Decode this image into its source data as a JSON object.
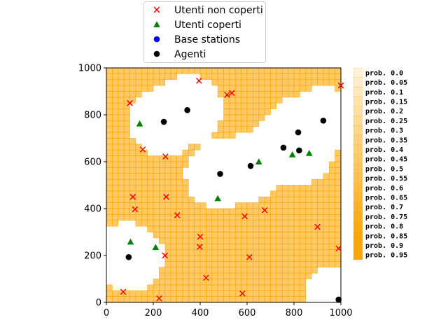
{
  "chart_data": {
    "type": "scatter",
    "xlim": [
      0,
      1000
    ],
    "ylim": [
      0,
      1000
    ],
    "xticks": [
      0,
      200,
      400,
      600,
      800,
      1000
    ],
    "yticks": [
      0,
      200,
      400,
      600,
      800,
      1000
    ],
    "background": {
      "type": "heatmap",
      "grid_step": 25,
      "color": "#ffa500",
      "uncovered_prob": 0.6,
      "coverage_radius": 150,
      "coverage_centers": [
        {
          "x": 245,
          "y": 770
        },
        {
          "x": 345,
          "y": 820
        },
        {
          "x": 485,
          "y": 548
        },
        {
          "x": 615,
          "y": 582
        },
        {
          "x": 755,
          "y": 660
        },
        {
          "x": 818,
          "y": 725
        },
        {
          "x": 822,
          "y": 648
        },
        {
          "x": 925,
          "y": 775
        },
        {
          "x": 95,
          "y": 193
        },
        {
          "x": 990,
          "y": 12
        }
      ]
    },
    "colorbar": {
      "levels": [
        "prob. 0.0",
        "prob. 0.05",
        "prob. 0.1",
        "prob. 0.15",
        "prob. 0.2",
        "prob. 0.25",
        "prob. 0.3",
        "prob. 0.35",
        "prob. 0.4",
        "prob. 0.45",
        "prob. 0.5",
        "prob. 0.55",
        "prob. 0.6",
        "prob. 0.65",
        "prob. 0.7",
        "prob. 0.75",
        "prob. 0.8",
        "prob. 0.85",
        "prob. 0.9",
        "prob. 0.95"
      ],
      "values": [
        0.0,
        0.05,
        0.1,
        0.15,
        0.2,
        0.25,
        0.3,
        0.35,
        0.4,
        0.45,
        0.5,
        0.55,
        0.6,
        0.65,
        0.7,
        0.75,
        0.8,
        0.85,
        0.9,
        0.95
      ]
    },
    "legend": {
      "placement": "upper-center-outside",
      "entries": [
        {
          "label": "Utenti non coperti",
          "marker": "x",
          "color": "#ff0000"
        },
        {
          "label": "Utenti coperti",
          "marker": "triangle",
          "color": "#008000"
        },
        {
          "label": "Base stations",
          "marker": "circle",
          "color": "#0000ff"
        },
        {
          "label": "Agenti",
          "marker": "circle",
          "color": "#000000"
        }
      ]
    },
    "series": [
      {
        "name": "Utenti non coperti",
        "marker": "x",
        "color": "#ff0000",
        "points": [
          [
            100,
            850
          ],
          [
            395,
            945
          ],
          [
            515,
            885
          ],
          [
            535,
            893
          ],
          [
            1000,
            925
          ],
          [
            155,
            652
          ],
          [
            252,
            622
          ],
          [
            113,
            450
          ],
          [
            122,
            397
          ],
          [
            255,
            450
          ],
          [
            302,
            372
          ],
          [
            590,
            367
          ],
          [
            675,
            393
          ],
          [
            400,
            280
          ],
          [
            398,
            237
          ],
          [
            900,
            322
          ],
          [
            990,
            230
          ],
          [
            250,
            200
          ],
          [
            610,
            193
          ],
          [
            425,
            105
          ],
          [
            72,
            45
          ],
          [
            225,
            17
          ],
          [
            580,
            38
          ]
        ]
      },
      {
        "name": "Utenti coperti",
        "marker": "triangle",
        "color": "#008000",
        "points": [
          [
            142,
            762
          ],
          [
            650,
            600
          ],
          [
            793,
            630
          ],
          [
            865,
            636
          ],
          [
            475,
            443
          ],
          [
            103,
            258
          ],
          [
            210,
            235
          ]
        ]
      },
      {
        "name": "Base stations",
        "marker": "circle",
        "color": "#0000ff",
        "points": []
      },
      {
        "name": "Agenti",
        "marker": "circle",
        "color": "#000000",
        "points": [
          [
            245,
            770
          ],
          [
            345,
            820
          ],
          [
            485,
            548
          ],
          [
            615,
            582
          ],
          [
            755,
            660
          ],
          [
            818,
            725
          ],
          [
            822,
            648
          ],
          [
            925,
            775
          ],
          [
            95,
            193
          ],
          [
            990,
            12
          ]
        ]
      }
    ]
  }
}
